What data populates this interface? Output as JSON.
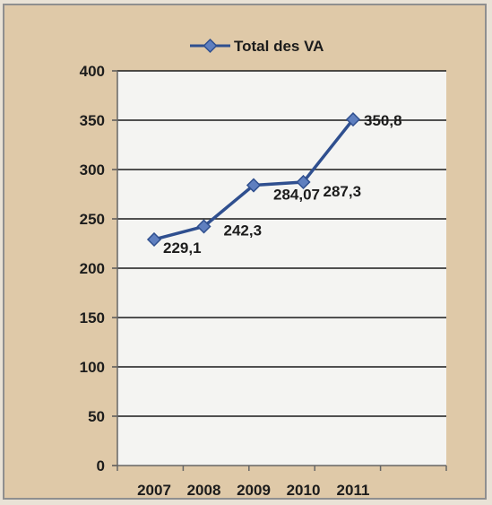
{
  "chart_data": {
    "type": "line",
    "categories": [
      "2007",
      "2008",
      "2009",
      "2010",
      "2011"
    ],
    "series": [
      {
        "name": "Total des VA",
        "values": [
          229.1,
          242.3,
          284.07,
          287.3,
          350.8
        ],
        "labels": [
          "229,1",
          "242,3",
          "284,07",
          "287,3",
          "350,8"
        ],
        "color": "#2f4f8f",
        "marker": "diamond"
      }
    ],
    "yticks": [
      "0",
      "50",
      "100",
      "150",
      "200",
      "250",
      "300",
      "350",
      "400"
    ],
    "ylim": [
      0,
      400
    ],
    "grid": true,
    "legend_position": "top"
  },
  "colors": {
    "frame_background": "#dfc9a8",
    "plot_background": "#f4f4f2",
    "gridline": "#1a1a1a",
    "line": "#2f4f8f",
    "marker_fill": "#5f7fbf"
  }
}
